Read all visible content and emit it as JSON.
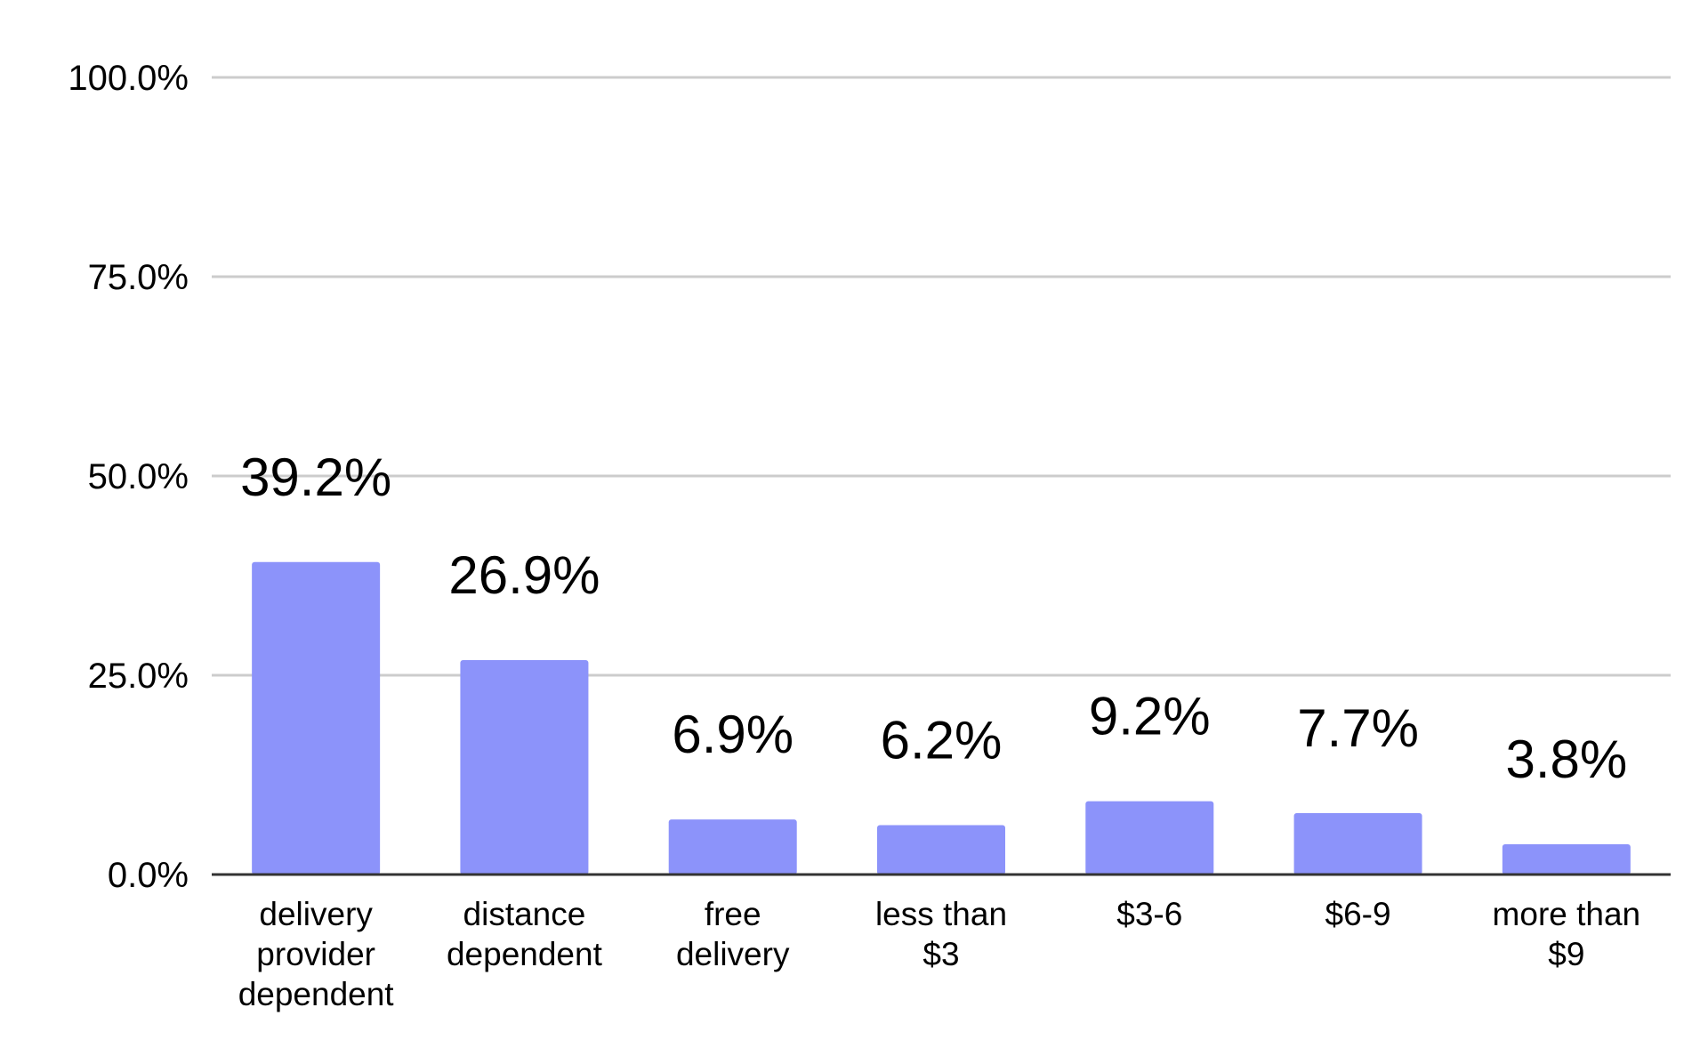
{
  "chart_data": {
    "type": "bar",
    "title": "",
    "xlabel": "",
    "ylabel": "",
    "categories": [
      "delivery provider dependent",
      "distance dependent",
      "free delivery",
      "less than $3",
      "$3-6",
      "$6-9",
      "more than $9"
    ],
    "category_lines": [
      [
        "delivery",
        "provider",
        "dependent"
      ],
      [
        "distance",
        "dependent"
      ],
      [
        "free",
        "delivery"
      ],
      [
        "less than",
        "$3"
      ],
      [
        "$3-6"
      ],
      [
        "$6-9"
      ],
      [
        "more than",
        "$9"
      ]
    ],
    "values": [
      39.2,
      26.9,
      6.9,
      6.2,
      9.2,
      7.7,
      3.8
    ],
    "data_labels": [
      "39.2%",
      "26.9%",
      "6.9%",
      "6.2%",
      "9.2%",
      "7.7%",
      "3.8%"
    ],
    "ylim": [
      0,
      100
    ],
    "yticks": [
      0,
      25,
      50,
      75,
      100
    ],
    "ytick_labels": [
      "0.0%",
      "25.0%",
      "50.0%",
      "75.0%",
      "100.0%"
    ],
    "grid": true,
    "legend": "none",
    "colors": {
      "bar": "#8c93fa",
      "grid": "#cccccc",
      "axis": "#333333",
      "text": "#000000"
    }
  }
}
